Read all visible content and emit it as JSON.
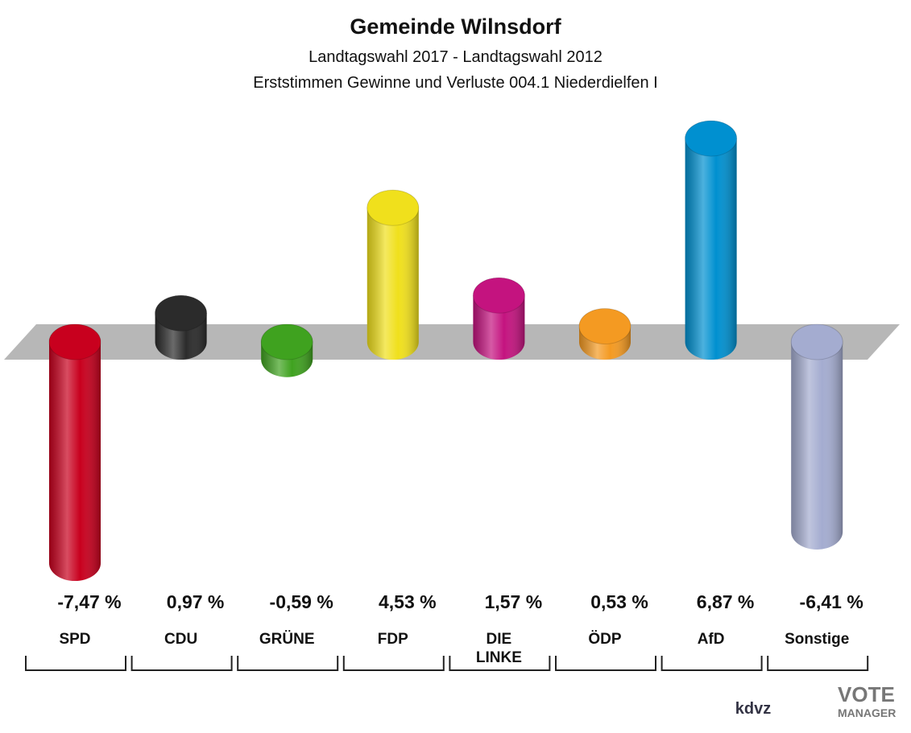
{
  "chart_data": {
    "type": "bar",
    "title": "Gemeinde Wilnsdorf",
    "subtitle": "Landtagswahl 2017 - Landtagswahl 2012",
    "subtitle2": "Erststimmen Gewinne und Verluste 004.1 Niederdielfen I",
    "categories": [
      "SPD",
      "CDU",
      "GRÜNE",
      "FDP",
      "DIE\nLINKE",
      "ÖDP",
      "AfD",
      "Sonstige"
    ],
    "values": [
      -7.47,
      0.97,
      -0.59,
      4.53,
      1.57,
      0.53,
      6.87,
      -6.41
    ],
    "value_labels": [
      "-7,47 %",
      "0,97 %",
      "-0,59 %",
      "4,53 %",
      "1,57 %",
      "0,53 %",
      "6,87 %",
      "-6,41 %"
    ],
    "colors": [
      "#c8001e",
      "#2b2b2b",
      "#3fa21f",
      "#f0e01c",
      "#c4137f",
      "#f49a22",
      "#0090d0",
      "#a4acd0"
    ],
    "branding": [
      "kdvz",
      "VOTE",
      "MANAGER"
    ]
  }
}
